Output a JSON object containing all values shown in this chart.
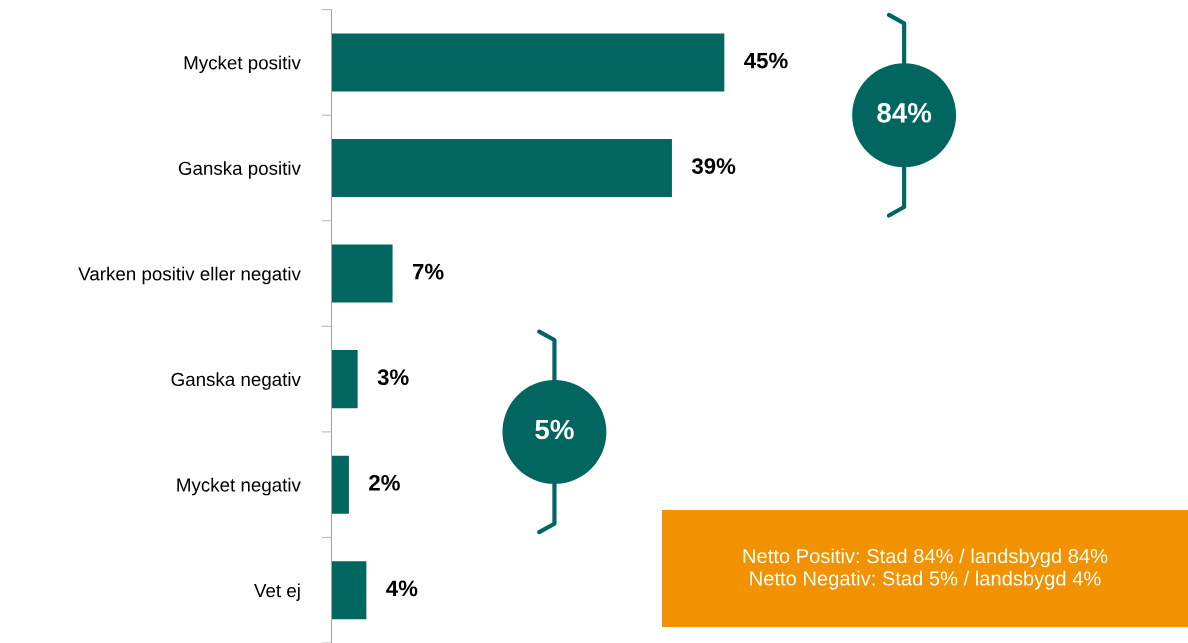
{
  "chart_data": {
    "type": "bar",
    "orientation": "horizontal",
    "categories": [
      "Mycket positiv",
      "Ganska positiv",
      "Varken positiv eller negativ",
      "Ganska negativ",
      "Mycket negativ",
      "Vet ej"
    ],
    "values": [
      45,
      39,
      7,
      3,
      2,
      4
    ],
    "value_labels": [
      "45%",
      "39%",
      "7%",
      "3%",
      "2%",
      "4%"
    ],
    "color": "#00665f",
    "grid": false,
    "legend": false,
    "annotations": [
      "84%",
      "5%",
      "Netto Positiv: Stad 84% / landsbygd 84%\nNetto Negativ: Stad 5% / landsbygd 4%"
    ]
  }
}
